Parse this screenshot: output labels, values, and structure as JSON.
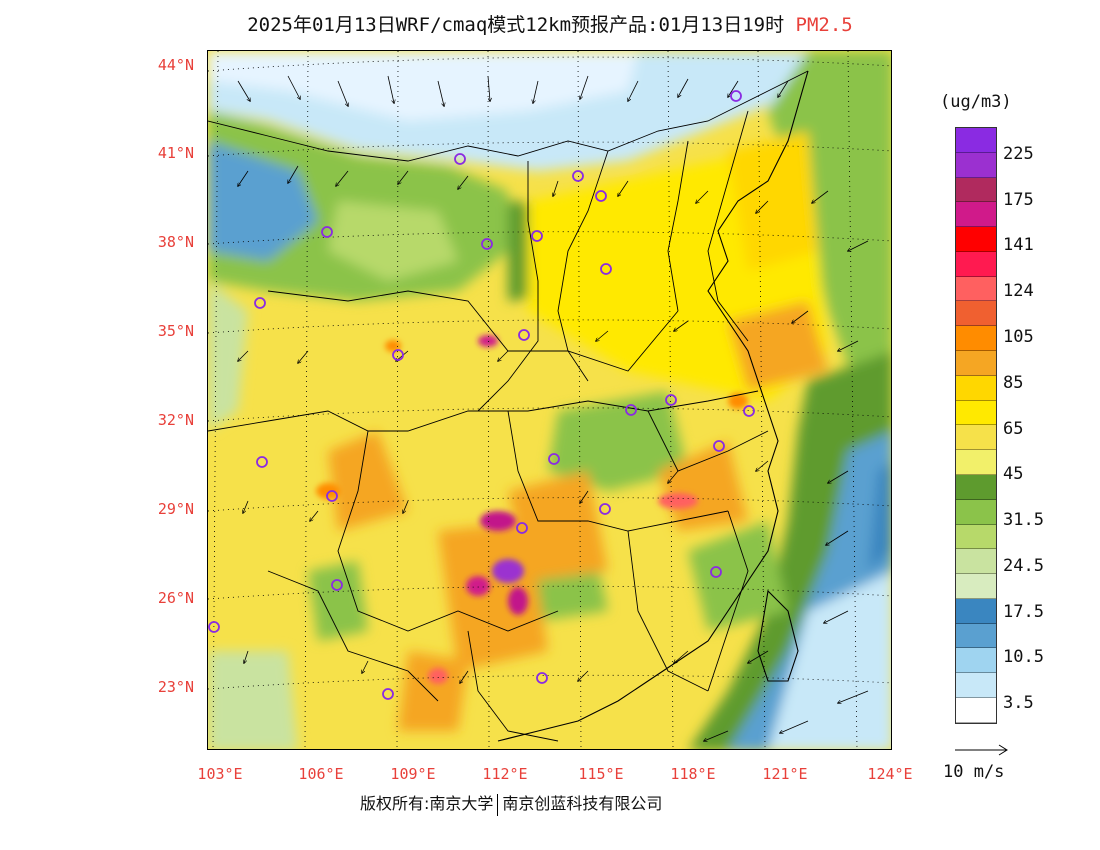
{
  "title": {
    "main": "2025年01月13日WRF/cmaq模式12km预报产品:01月13日19时",
    "pollutant": "PM2.5"
  },
  "map": {
    "lat_labels": [
      "44°N",
      "41°N",
      "38°N",
      "35°N",
      "32°N",
      "29°N",
      "26°N",
      "23°N"
    ],
    "lon_labels": [
      "103°E",
      "106°E",
      "109°E",
      "112°E",
      "115°E",
      "118°E",
      "121°E",
      "124°E"
    ],
    "colors": {
      "ocean": "#8ec8e8",
      "deep_ocean": "#5aa0d0",
      "plain_yellow": "#f6e14a",
      "bright_yellow": "#ffe900",
      "orange": "#f5a623",
      "green": "#8bc34a",
      "dark_green": "#5e9b2e",
      "light_green": "#c9e3a0",
      "pale": "#e6f4ff",
      "magenta": "#c2158a",
      "purple": "#9b30d0",
      "boundary": "#000000",
      "station": "#8a2be2"
    }
  },
  "colorbar": {
    "unit": "(ug/m3)",
    "colors": [
      "#8a2be2",
      "#9b30d0",
      "#b02a5e",
      "#d01a8a",
      "#ff0000",
      "#ff1a50",
      "#ff6060",
      "#f06030",
      "#ff8c00",
      "#f5a623",
      "#ffd700",
      "#ffe900",
      "#f6e14a",
      "#f2f06a",
      "#5e9b2e",
      "#8bc34a",
      "#b7d96a",
      "#c9e3a0",
      "#d8ecbf",
      "#3a86c0",
      "#5aa0d0",
      "#9fd4f0",
      "#c8e8f8",
      "#ffffff"
    ],
    "labels": [
      {
        "text": "225",
        "row": 1
      },
      {
        "text": "175",
        "row": 3
      },
      {
        "text": "141",
        "row": 5
      },
      {
        "text": "124",
        "row": 7
      },
      {
        "text": "105",
        "row": 9
      },
      {
        "text": "85",
        "row": 11
      },
      {
        "text": "65",
        "row": 13
      },
      {
        "text": "45",
        "row": 15
      },
      {
        "text": "31.5",
        "row": 17
      },
      {
        "text": "24.5",
        "row": 19
      },
      {
        "text": "17.5",
        "row": 21
      },
      {
        "text": "10.5",
        "row": 23
      },
      {
        "text": "3.5",
        "row": 25
      }
    ]
  },
  "wind_reference": "10 m/s",
  "footer": {
    "left": "版权所有:南京大学",
    "right": "南京创蓝科技有限公司"
  }
}
